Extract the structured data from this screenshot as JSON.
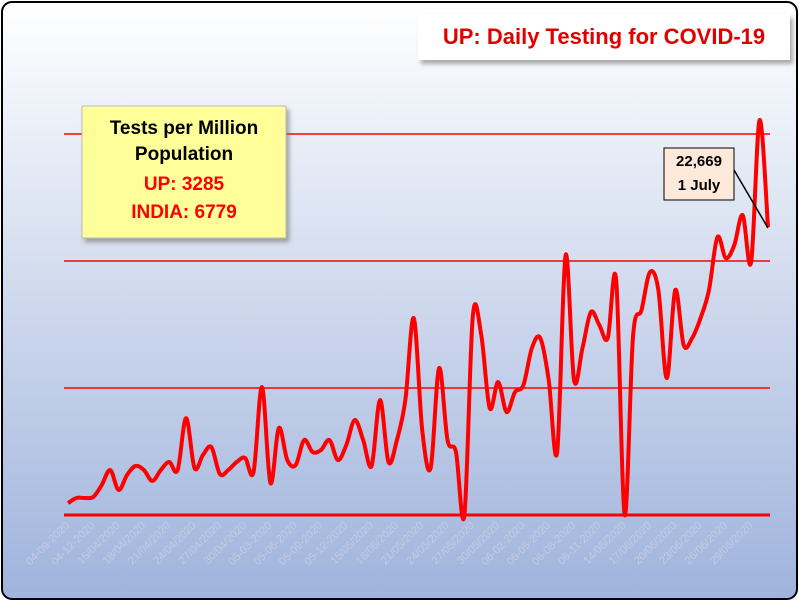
{
  "chart_data": {
    "type": "line",
    "title": "UP: Daily Testing for COVID-19",
    "categories": [
      "04-09-2020",
      null,
      null,
      "04-12-2020",
      null,
      null,
      "15/04/2020",
      null,
      null,
      "18/04/2020",
      null,
      null,
      "21/04/2020",
      null,
      null,
      "24/04/2020",
      null,
      null,
      "27/04/2020",
      null,
      null,
      "30/04/2020",
      null,
      null,
      "05-03-2020",
      null,
      null,
      "05-06-2020",
      null,
      null,
      "05-09-2020",
      null,
      null,
      "05-12-2020",
      null,
      null,
      "15/05/2020",
      null,
      null,
      "18/05/2020",
      null,
      null,
      "21/05/2020",
      null,
      null,
      "24/05/2020",
      null,
      null,
      "27/05/2020",
      null,
      null,
      "30/05/2020",
      null,
      null,
      "06-02-2020",
      null,
      null,
      "06-05-2020",
      null,
      null,
      "06-08-2020",
      null,
      null,
      "06-11-2020",
      null,
      null,
      "14/06/2020",
      null,
      null,
      "17/06/2020",
      null,
      null,
      "20/06/2020",
      null,
      null,
      "23/06/2020",
      null,
      null,
      "26/06/2020",
      null,
      null,
      "29/06/2020",
      null,
      null
    ],
    "values": [
      940,
      1340,
      1340,
      1420,
      2360,
      3540,
      1970,
      3150,
      3860,
      3540,
      2680,
      3540,
      4170,
      3540,
      7630,
      3700,
      4720,
      5350,
      3230,
      3540,
      4170,
      4490,
      3380,
      10070,
      2520,
      6850,
      4330,
      3940,
      5900,
      4960,
      5120,
      5900,
      4330,
      5510,
      7480,
      5900,
      3860,
      9050,
      4170,
      5900,
      9050,
      15500,
      6690,
      3700,
      11570,
      5900,
      4960,
      0,
      15660,
      14170,
      8420,
      10470,
      8110,
      9680,
      10230,
      13140,
      13930,
      10620,
      4960,
      20460,
      10620,
      13140,
      15980,
      14950,
      13930,
      18490,
      0,
      14090,
      16130,
      19120,
      17710,
      10780,
      17710,
      13380,
      13930,
      15500,
      17710,
      21880,
      20230,
      21250,
      23610,
      19910,
      31090,
      22669
    ],
    "color": "#ff0000",
    "ylim": [
      0,
      40000
    ],
    "yticks": [
      0,
      10000,
      20000,
      30000
    ],
    "grid": true,
    "info_box": {
      "heading": "Tests per Million Population",
      "lines": [
        "UP: 3285",
        "INDIA: 6779"
      ]
    },
    "annotation": {
      "label": "22,669",
      "text": "1 July"
    }
  }
}
